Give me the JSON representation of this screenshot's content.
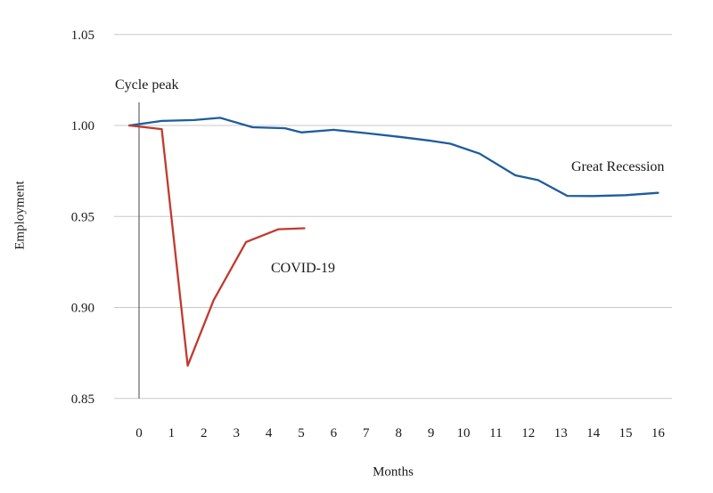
{
  "figure": {
    "background": "#ffffff",
    "text_color": "#1a1a1a",
    "annotations": {
      "cycle_peak": "Cycle peak",
      "great_recession": "Great Recession",
      "covid": "COVID-19"
    },
    "axes": {
      "y_label": "Employment",
      "x_label": "Months",
      "y_tick_labels": [
        "1.05",
        "1.00",
        "0.95",
        "0.90",
        "0.85"
      ],
      "x_tick_labels": [
        "0",
        "1",
        "2",
        "3",
        "4",
        "5",
        "6",
        "7",
        "8",
        "9",
        "10",
        "11",
        "12",
        "13",
        "14",
        "15",
        "16"
      ]
    }
  },
  "chart_data": {
    "type": "line",
    "title": "",
    "xlabel": "Months",
    "ylabel": "Employment",
    "xlim": [
      -0.8,
      16.6
    ],
    "ylim": [
      0.845,
      1.055
    ],
    "grid": "horizontal-only",
    "grid_color": "#c8c8c8",
    "y_tick_values": [
      1.05,
      1.0,
      0.95,
      0.9,
      0.85
    ],
    "x_tick_values": [
      0,
      1,
      2,
      3,
      4,
      5,
      6,
      7,
      8,
      9,
      10,
      11,
      12,
      13,
      14,
      15,
      16
    ],
    "cycle_peak_vline_x": 0,
    "vline_color": "#454545",
    "series": [
      {
        "name": "Great Recession",
        "color": "#1e5c9e",
        "points": [
          [
            -0.3,
            1.0
          ],
          [
            0.7,
            1.0025
          ],
          [
            1.7,
            1.003
          ],
          [
            2.5,
            1.0042
          ],
          [
            3.5,
            0.999
          ],
          [
            4.5,
            0.9985
          ],
          [
            5.0,
            0.9962
          ],
          [
            6.0,
            0.9976
          ],
          [
            7.0,
            0.9958
          ],
          [
            8.0,
            0.9938
          ],
          [
            9.0,
            0.9916
          ],
          [
            9.6,
            0.99
          ],
          [
            10.5,
            0.9845
          ],
          [
            11.6,
            0.9726
          ],
          [
            12.3,
            0.97
          ],
          [
            13.2,
            0.9613
          ],
          [
            14.0,
            0.9612
          ],
          [
            15.0,
            0.9617
          ],
          [
            16.0,
            0.963
          ]
        ]
      },
      {
        "name": "COVID-19",
        "color": "#c03a2e",
        "points": [
          [
            -0.3,
            1.0
          ],
          [
            0.7,
            0.998
          ],
          [
            1.5,
            0.868
          ],
          [
            2.3,
            0.904
          ],
          [
            3.3,
            0.936
          ],
          [
            4.3,
            0.943
          ],
          [
            5.1,
            0.9435
          ]
        ]
      }
    ]
  }
}
